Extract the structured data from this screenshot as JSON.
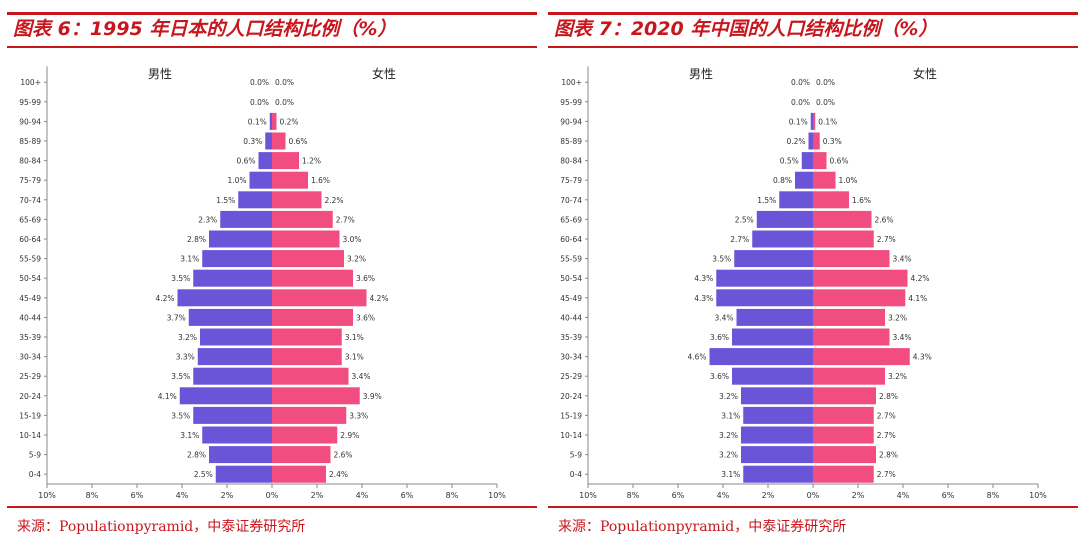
{
  "charts": [
    {
      "title": "图表 6：1995 年日本的人口结构比例（%）",
      "source": "来源：Populationpyramid，中泰证券研究所",
      "colors": {
        "male": "#6a55d8",
        "female": "#f24d80"
      },
      "chart_data": {
        "type": "bar",
        "orientation": "horizontal-pyramid",
        "title": "",
        "categories": [
          "0-4",
          "5-9",
          "10-14",
          "15-19",
          "20-24",
          "25-29",
          "30-34",
          "35-39",
          "40-44",
          "45-49",
          "50-54",
          "55-59",
          "60-64",
          "65-69",
          "70-74",
          "75-79",
          "80-84",
          "85-89",
          "90-94",
          "95-99",
          "100+"
        ],
        "series": [
          {
            "name": "男性",
            "values": [
              2.5,
              2.8,
              3.1,
              3.5,
              4.1,
              3.5,
              3.3,
              3.2,
              3.7,
              4.2,
              3.5,
              3.1,
              2.8,
              2.3,
              1.5,
              1.0,
              0.6,
              0.3,
              0.1,
              0.0,
              0.0
            ]
          },
          {
            "name": "女性",
            "values": [
              2.4,
              2.6,
              2.9,
              3.3,
              3.9,
              3.4,
              3.1,
              3.1,
              3.6,
              4.2,
              3.6,
              3.2,
              3.0,
              2.7,
              2.2,
              1.6,
              1.2,
              0.6,
              0.2,
              0.0,
              0.0
            ]
          }
        ],
        "xlim": [
          -10,
          10
        ],
        "x_tick_labels": [
          "10%",
          "8%",
          "6%",
          "4%",
          "2%",
          "0%",
          "2%",
          "4%",
          "6%",
          "8%",
          "10%"
        ],
        "grid": false,
        "legend": "top"
      }
    },
    {
      "title": "图表 7：2020 年中国的人口结构比例（%）",
      "source": "来源：Populationpyramid，中泰证券研究所",
      "colors": {
        "male": "#6a55d8",
        "female": "#f24d80"
      },
      "chart_data": {
        "type": "bar",
        "orientation": "horizontal-pyramid",
        "title": "",
        "categories": [
          "0-4",
          "5-9",
          "10-14",
          "15-19",
          "20-24",
          "25-29",
          "30-34",
          "35-39",
          "40-44",
          "45-49",
          "50-54",
          "55-59",
          "60-64",
          "65-69",
          "70-74",
          "75-79",
          "80-84",
          "85-89",
          "90-94",
          "95-99",
          "100+"
        ],
        "series": [
          {
            "name": "男性",
            "values": [
              3.1,
              3.2,
              3.2,
              3.1,
              3.2,
              3.6,
              4.6,
              3.6,
              3.4,
              4.3,
              4.3,
              3.5,
              2.7,
              2.5,
              1.5,
              0.8,
              0.5,
              0.2,
              0.1,
              0.0,
              0.0
            ]
          },
          {
            "name": "女性",
            "values": [
              2.7,
              2.8,
              2.7,
              2.7,
              2.8,
              3.2,
              4.3,
              3.4,
              3.2,
              4.1,
              4.2,
              3.4,
              2.7,
              2.6,
              1.6,
              1.0,
              0.6,
              0.3,
              0.1,
              0.0,
              0.0
            ]
          }
        ],
        "xlim": [
          -10,
          10
        ],
        "x_tick_labels": [
          "10%",
          "8%",
          "6%",
          "4%",
          "2%",
          "0%",
          "2%",
          "4%",
          "6%",
          "8%",
          "10%"
        ],
        "grid": false,
        "legend": "top"
      }
    }
  ]
}
